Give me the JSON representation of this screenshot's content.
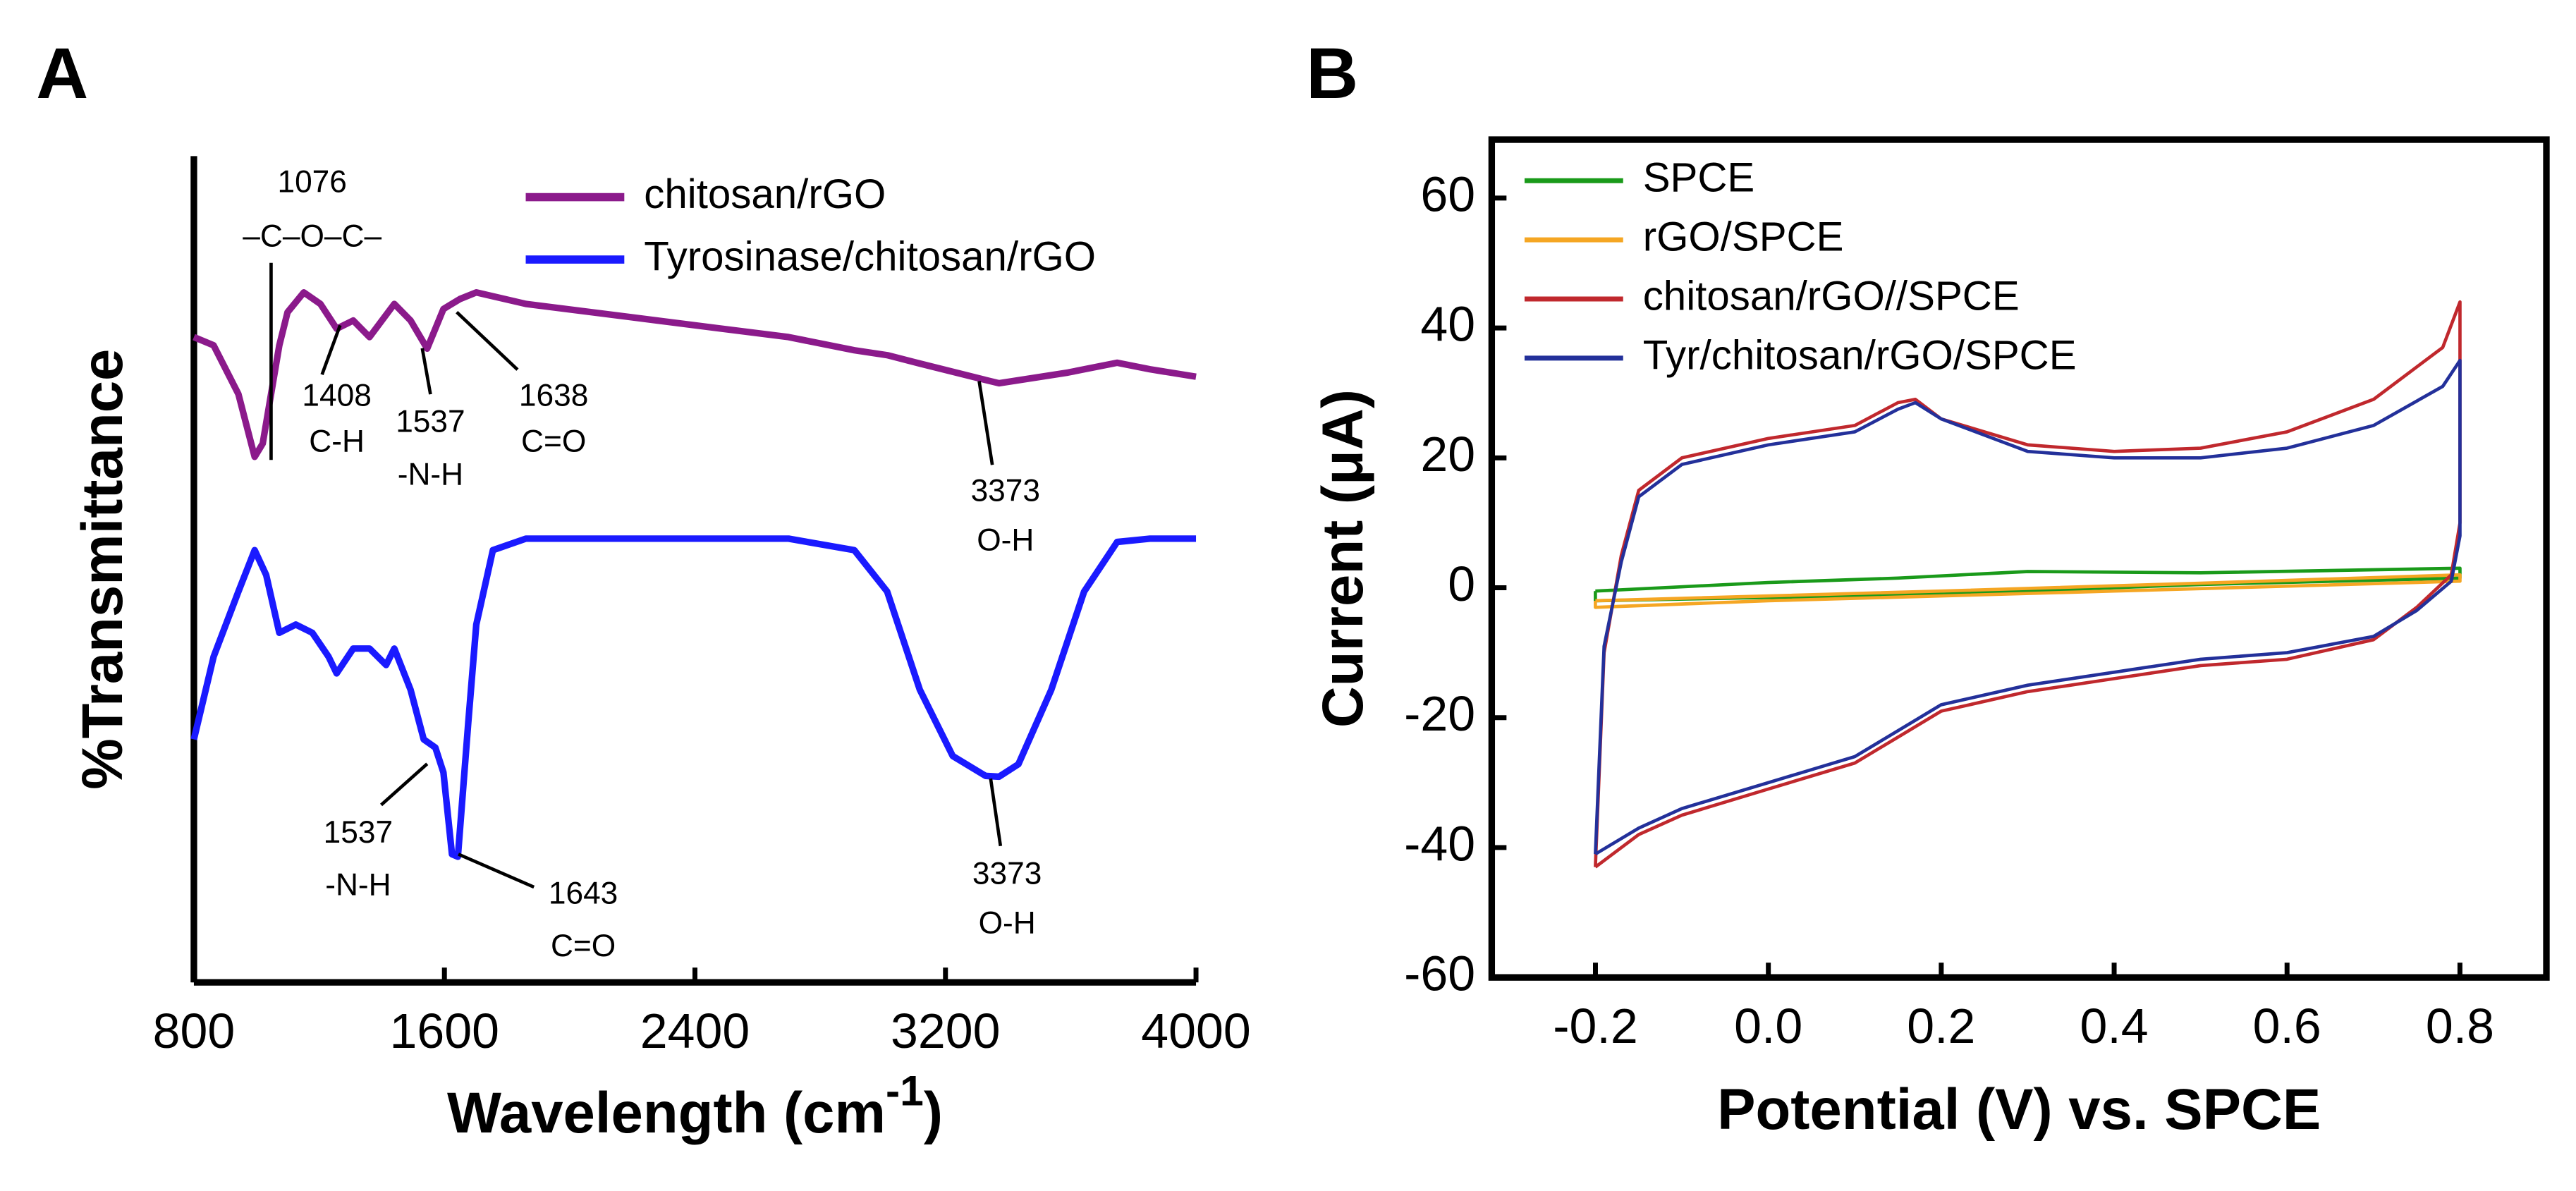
{
  "chart_data": [
    {
      "type": "line",
      "panel": "A",
      "frame": "axes",
      "legend": "upper right",
      "xlabel": {
        "text": "Wavelength (cm",
        "superscript": "-1",
        "close": ")"
      },
      "ylabel": "%Transmittance",
      "xlim": [
        800,
        4000
      ],
      "ylim": [
        0,
        100
      ],
      "xticks": [
        800,
        1600,
        2400,
        3200,
        4000
      ],
      "series": [
        {
          "name": "chitosan/rGO",
          "color": "#8b1a8b",
          "x": [
            800,
            863,
            942,
            994,
            1020,
            1073,
            1099,
            1151,
            1204,
            1256,
            1309,
            1361,
            1440,
            1492,
            1545,
            1597,
            1650,
            1702,
            1860,
            2279,
            2699,
            2909,
            3014,
            3118,
            3328,
            3371,
            3591,
            3748,
            3853,
            4000
          ],
          "values": [
            78.1,
            77.1,
            71.2,
            63.6,
            65.2,
            77.1,
            81.1,
            83.5,
            82.1,
            79.1,
            80.1,
            78.1,
            82.1,
            80.1,
            76.7,
            81.5,
            82.7,
            83.5,
            82.1,
            80.1,
            78.1,
            76.5,
            75.9,
            74.9,
            72.9,
            72.5,
            73.8,
            75.0,
            74.2,
            73.3
          ]
        },
        {
          "name": "Tyrosinase/chitosan/rGO",
          "color": "#1a1aff",
          "x": [
            800,
            863,
            942,
            994,
            1031,
            1073,
            1125,
            1178,
            1230,
            1256,
            1309,
            1361,
            1414,
            1440,
            1492,
            1534,
            1571,
            1597,
            1624,
            1643,
            1676,
            1702,
            1755,
            1860,
            2279,
            2699,
            2909,
            3014,
            3118,
            3223,
            3328,
            3371,
            3433,
            3538,
            3643,
            3748,
            3853,
            4000
          ],
          "values": [
            29.4,
            39.4,
            47.3,
            52.3,
            49.3,
            42.3,
            43.3,
            42.3,
            39.4,
            37.4,
            40.4,
            40.4,
            38.4,
            40.4,
            35.4,
            29.4,
            28.4,
            25.4,
            15.5,
            15.2,
            31.4,
            43.3,
            52.3,
            53.7,
            53.7,
            53.7,
            52.3,
            47.3,
            35.4,
            27.4,
            25.0,
            24.9,
            26.4,
            35.4,
            47.3,
            53.3,
            53.7,
            53.7
          ]
        }
      ],
      "annotations": [
        {
          "label": "1076",
          "text": "–C–O–C–"
        },
        {
          "label": "1408",
          "text": "C-H"
        },
        {
          "label": "1537",
          "text": "-N-H"
        },
        {
          "label": "1638",
          "text": "C=O"
        },
        {
          "label": "3373",
          "text": "O-H"
        },
        {
          "label": "1537",
          "text": "-N-H"
        },
        {
          "label": "1643",
          "text": "C=O"
        },
        {
          "label": "3373",
          "text": "O-H"
        }
      ]
    },
    {
      "type": "line",
      "panel": "B",
      "frame": "box",
      "legend": "upper left",
      "xlabel": "Potential (V) vs. SPCE",
      "ylabel": "Current (μA)",
      "xlim": [
        -0.32,
        0.9
      ],
      "ylim": [
        -60,
        69
      ],
      "xticks": [
        -0.2,
        {
          "value": 0,
          "label": "0.0"
        },
        0.2,
        0.4,
        0.6,
        0.8
      ],
      "yticks": [
        -60,
        -40,
        -20,
        0,
        20,
        40,
        60
      ],
      "series": [
        {
          "name": "SPCE",
          "color": "#1a9a1a",
          "x": [
            -0.2,
            0.0,
            0.15,
            0.3,
            0.5,
            0.8,
            0.8,
            0.5,
            0.2,
            0.0,
            -0.2,
            -0.2
          ],
          "values": [
            -0.5,
            0.8,
            1.5,
            2.5,
            2.3,
            3,
            1.5,
            0.5,
            -1,
            -1.5,
            -2,
            -0.5
          ]
        },
        {
          "name": "rGO/SPCE",
          "color": "#f5a623",
          "x": [
            -0.2,
            0.2,
            0.5,
            0.8,
            0.8,
            0.4,
            0.0,
            -0.2,
            -0.2
          ],
          "values": [
            -2,
            -0.5,
            0.7,
            2,
            1,
            -0.5,
            -2,
            -3,
            -2
          ]
        },
        {
          "name": "chitosan/rGO//SPCE",
          "color": "#c0282d",
          "x": [
            -0.2,
            -0.19,
            -0.17,
            -0.15,
            -0.1,
            0.0,
            0.1,
            0.15,
            0.17,
            0.2,
            0.3,
            0.4,
            0.5,
            0.6,
            0.7,
            0.78,
            0.8,
            0.8,
            0.79,
            0.75,
            0.7,
            0.6,
            0.5,
            0.4,
            0.3,
            0.2,
            0.15,
            0.1,
            0.05,
            0.0,
            -0.1,
            -0.15,
            -0.2
          ],
          "values": [
            -43,
            -10,
            5,
            15,
            20,
            23,
            25,
            28.5,
            29,
            26,
            22,
            21,
            21.5,
            24,
            29,
            37,
            44,
            10,
            2,
            -3,
            -8,
            -11,
            -12,
            -14,
            -16,
            -19,
            -23,
            -27,
            -29,
            -31,
            -35,
            -38,
            -43
          ]
        },
        {
          "name": "Tyr/chitosan/rGO/SPCE",
          "color": "#23309a",
          "x": [
            -0.2,
            -0.19,
            -0.17,
            -0.15,
            -0.1,
            0.0,
            0.1,
            0.15,
            0.17,
            0.2,
            0.3,
            0.4,
            0.5,
            0.6,
            0.7,
            0.78,
            0.8,
            0.8,
            0.79,
            0.75,
            0.7,
            0.6,
            0.5,
            0.4,
            0.3,
            0.2,
            0.15,
            0.1,
            0.05,
            0.0,
            -0.1,
            -0.15,
            -0.2
          ],
          "values": [
            -41,
            -9,
            4,
            14,
            19,
            22,
            24,
            27.5,
            28.5,
            26,
            21,
            20,
            20,
            21.5,
            25,
            31,
            35,
            8,
            1,
            -3.5,
            -7.5,
            -10,
            -11,
            -13,
            -15,
            -18,
            -22,
            -26,
            -28,
            -30,
            -34,
            -37,
            -41
          ]
        }
      ]
    }
  ]
}
